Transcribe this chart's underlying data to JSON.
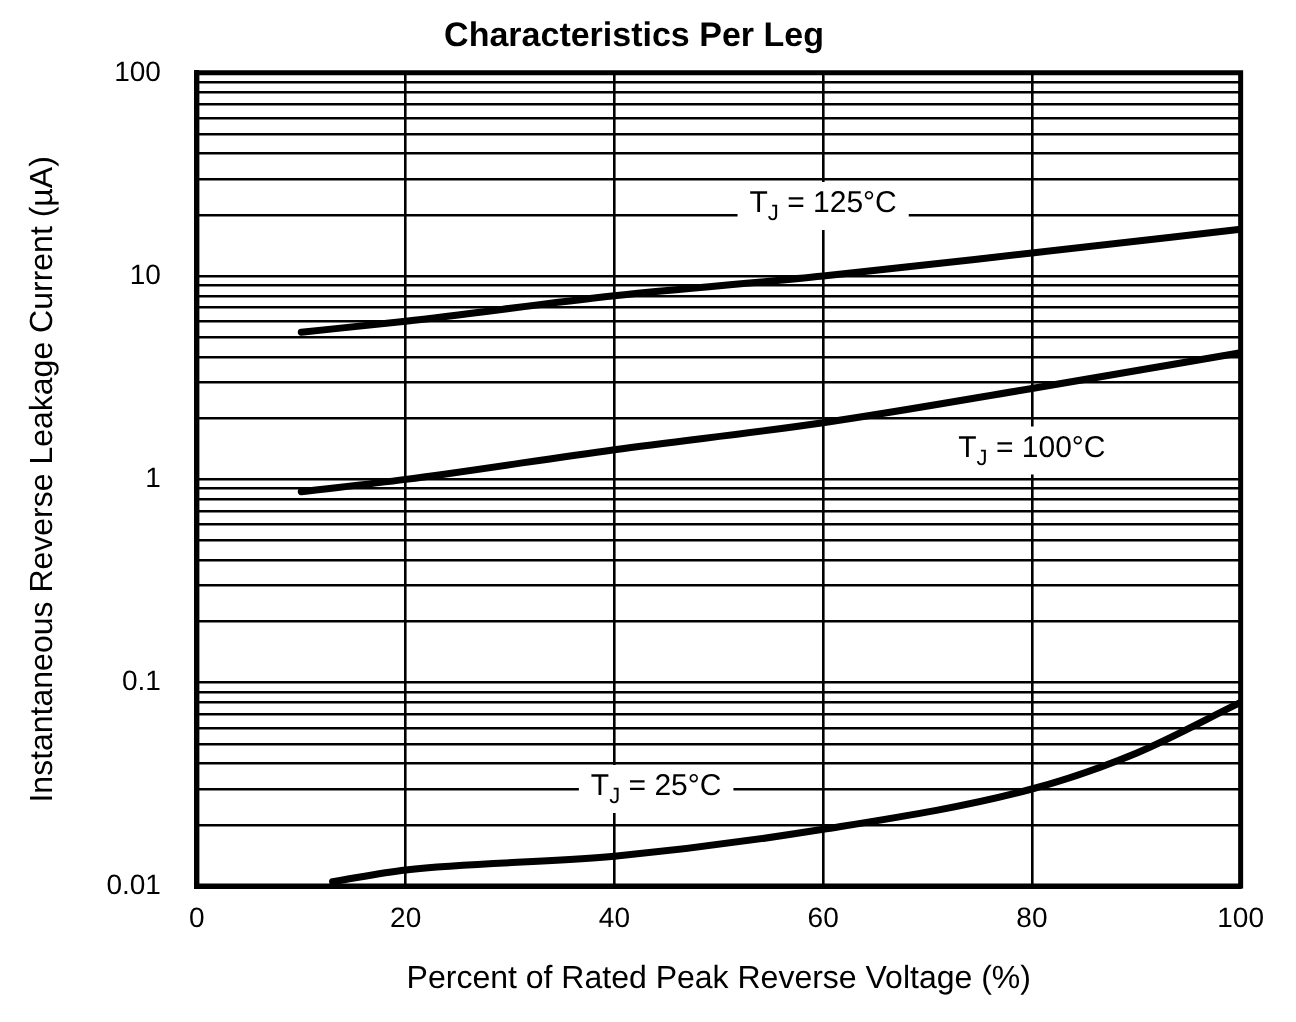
{
  "chart_data": {
    "type": "line",
    "title": "Characteristics Per Leg",
    "xlabel": "Percent of Rated Peak Reverse Voltage (%)",
    "ylabel": "Instantaneous Reverse Leakage Current (µA)",
    "log": "y",
    "grid": true,
    "legend": false,
    "marker": "none",
    "line_style": "solid",
    "xlim": [
      0,
      100
    ],
    "xticks": [
      0,
      20,
      40,
      60,
      80,
      100
    ],
    "ylim": [
      0.01,
      100
    ],
    "yticks": [
      0.01,
      {
        "value": 0.02,
        "label": null
      },
      {
        "value": 0.03,
        "label": null
      },
      {
        "value": 0.04,
        "label": null
      },
      {
        "value": 0.05,
        "label": null
      },
      {
        "value": 0.06,
        "label": null
      },
      {
        "value": 0.07,
        "label": null
      },
      {
        "value": 0.08,
        "label": null
      },
      {
        "value": 0.09,
        "label": null
      },
      0.1,
      {
        "value": 0.2,
        "label": null
      },
      {
        "value": 0.3,
        "label": null
      },
      {
        "value": 0.4,
        "label": null
      },
      {
        "value": 0.5,
        "label": null
      },
      {
        "value": 0.6,
        "label": null
      },
      {
        "value": 0.7,
        "label": null
      },
      {
        "value": 0.8,
        "label": null
      },
      {
        "value": 0.9,
        "label": null
      },
      1,
      {
        "value": 2,
        "label": null
      },
      {
        "value": 3,
        "label": null
      },
      {
        "value": 4,
        "label": null
      },
      {
        "value": 5,
        "label": null
      },
      {
        "value": 6,
        "label": null
      },
      {
        "value": 7,
        "label": null
      },
      {
        "value": 8,
        "label": null
      },
      {
        "value": 9,
        "label": null
      },
      10,
      {
        "value": 20,
        "label": null
      },
      {
        "value": 30,
        "label": null
      },
      {
        "value": 40,
        "label": null
      },
      {
        "value": 50,
        "label": null
      },
      {
        "value": 60,
        "label": null
      },
      {
        "value": 70,
        "label": null
      },
      {
        "value": 80,
        "label": null
      },
      {
        "value": 90,
        "label": null
      },
      100
    ],
    "series": [
      {
        "name": "T$_{J}$ = 125°C",
        "color": "#000000",
        "x": [
          10,
          20,
          40,
          60,
          80,
          100
        ],
        "values": [
          5.3,
          6,
          8,
          10,
          13,
          17
        ]
      },
      {
        "name": "T$_{J}$ = 100°C",
        "color": "#000000",
        "x": [
          10,
          20,
          40,
          60,
          80,
          100
        ],
        "values": [
          0.87,
          1,
          1.4,
          1.9,
          2.8,
          4.2
        ]
      },
      {
        "name": "T$_{J}$ = 25°C",
        "color": "#000000",
        "x": [
          13,
          20,
          40,
          60,
          80,
          90,
          100
        ],
        "values": [
          0.0105,
          0.012,
          0.014,
          0.019,
          0.03,
          0.045,
          0.08
        ]
      }
    ]
  }
}
